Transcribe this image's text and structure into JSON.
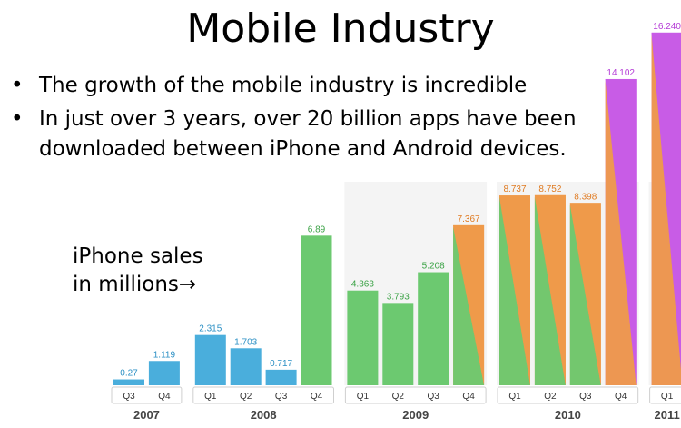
{
  "slide": {
    "title": "Mobile Industry",
    "bullets": [
      "The growth of the mobile industry is incredible",
      "In just over 3 years, over 20 billion apps have been downloaded between iPhone and Android devices."
    ],
    "side_label_line1": "iPhone sales",
    "side_label_line2": "in millions→"
  },
  "chart_data": {
    "type": "bar",
    "ylabel": "iPhone sales in millions",
    "categories": [
      "Q3",
      "Q4",
      "Q1",
      "Q2",
      "Q3",
      "Q4",
      "Q1",
      "Q2",
      "Q3",
      "Q4",
      "Q1",
      "Q2",
      "Q3",
      "Q4",
      "Q1"
    ],
    "years": [
      "2007",
      "2007",
      "2008",
      "2008",
      "2008",
      "2008",
      "2009",
      "2009",
      "2009",
      "2009",
      "2010",
      "2010",
      "2010",
      "2010",
      "2011"
    ],
    "year_labels": [
      "2007",
      "2008",
      "2009",
      "2010",
      "2011"
    ],
    "values": [
      0.27,
      1.119,
      2.315,
      1.703,
      0.717,
      6.89,
      4.363,
      3.793,
      5.208,
      7.367,
      8.737,
      8.752,
      8.398,
      14.102,
      16.24
    ],
    "value_labels": [
      "0.27",
      "1.119",
      "2.315",
      "1.703",
      "0.717",
      "6.89",
      "4.363",
      "3.793",
      "5.208",
      "7.367",
      "8.737",
      "8.752",
      "8.398",
      "14.102",
      "16.240"
    ],
    "colors": {
      "blue": "#4aaedc",
      "green": "#6cc970",
      "orange": "#ef9a4a",
      "purple": "#c85ce6"
    },
    "bar_colors": [
      "blue",
      "blue",
      "blue",
      "blue",
      "blue",
      "green",
      "green",
      "green",
      "green",
      "orange",
      "orange",
      "orange",
      "orange",
      "purple",
      "purple"
    ],
    "bar_diagonal_colors": [
      null,
      null,
      null,
      null,
      null,
      null,
      null,
      null,
      null,
      "green",
      "green",
      "green",
      "green",
      "orange",
      "orange"
    ],
    "label_colors": [
      "#2a8fc4",
      "#2a8fc4",
      "#2a8fc4",
      "#2a8fc4",
      "#2a8fc4",
      "#3aa245",
      "#3aa245",
      "#3aa245",
      "#3aa245",
      "#e07b22",
      "#e07b22",
      "#e07b22",
      "#e07b22",
      "#b43bd6",
      "#b43bd6"
    ],
    "legend": "none",
    "grid": false
  }
}
